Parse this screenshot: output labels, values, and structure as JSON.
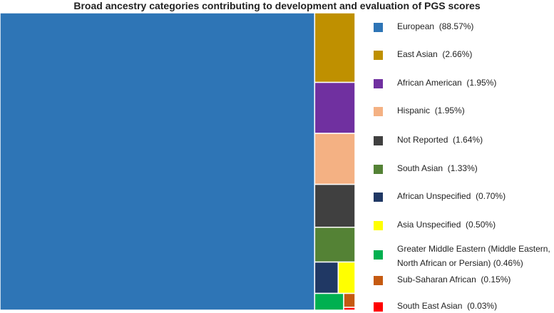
{
  "chart_data": {
    "type": "treemap",
    "title": "Broad ancestry categories contributing to development and evaluation of PGS scores",
    "categories": [
      {
        "name": "European",
        "label": "European",
        "pct_label": "(88.57%)",
        "value": 88.57,
        "color": "#2E75B6"
      },
      {
        "name": "East Asian",
        "label": "East Asian",
        "pct_label": "(2.66%)",
        "value": 2.66,
        "color": "#BF9000"
      },
      {
        "name": "African American",
        "label": "African American",
        "pct_label": "(1.95%)",
        "value": 1.95,
        "color": "#7030A0"
      },
      {
        "name": "Hispanic",
        "label": "Hispanic",
        "pct_label": "(1.95%)",
        "value": 1.95,
        "color": "#F4B183"
      },
      {
        "name": "Not Reported",
        "label": "Not Reported",
        "pct_label": "(1.64%)",
        "value": 1.64,
        "color": "#404040"
      },
      {
        "name": "South Asian",
        "label": "South Asian",
        "pct_label": "(1.33%)",
        "value": 1.33,
        "color": "#548235"
      },
      {
        "name": "African Unspecified",
        "label": "African Unspecified",
        "pct_label": "(0.70%)",
        "value": 0.7,
        "color": "#203864"
      },
      {
        "name": "Asia Unspecified",
        "label": "Asia Unspecified",
        "pct_label": "(0.50%)",
        "value": 0.5,
        "color": "#FFFF00"
      },
      {
        "name": "Greater Middle Eastern",
        "label": "Greater Middle Eastern (Middle Eastern,",
        "label_line2": "North African or Persian)",
        "pct_label": "(0.46%)",
        "value": 0.46,
        "color": "#00B050"
      },
      {
        "name": "Sub-Saharan African",
        "label": "Sub-Saharan African",
        "pct_label": "(0.15%)",
        "value": 0.15,
        "color": "#C55A11"
      },
      {
        "name": "South East Asian",
        "label": "South East Asian",
        "pct_label": "(0.03%)",
        "value": 0.03,
        "color": "#FF0000"
      }
    ]
  }
}
